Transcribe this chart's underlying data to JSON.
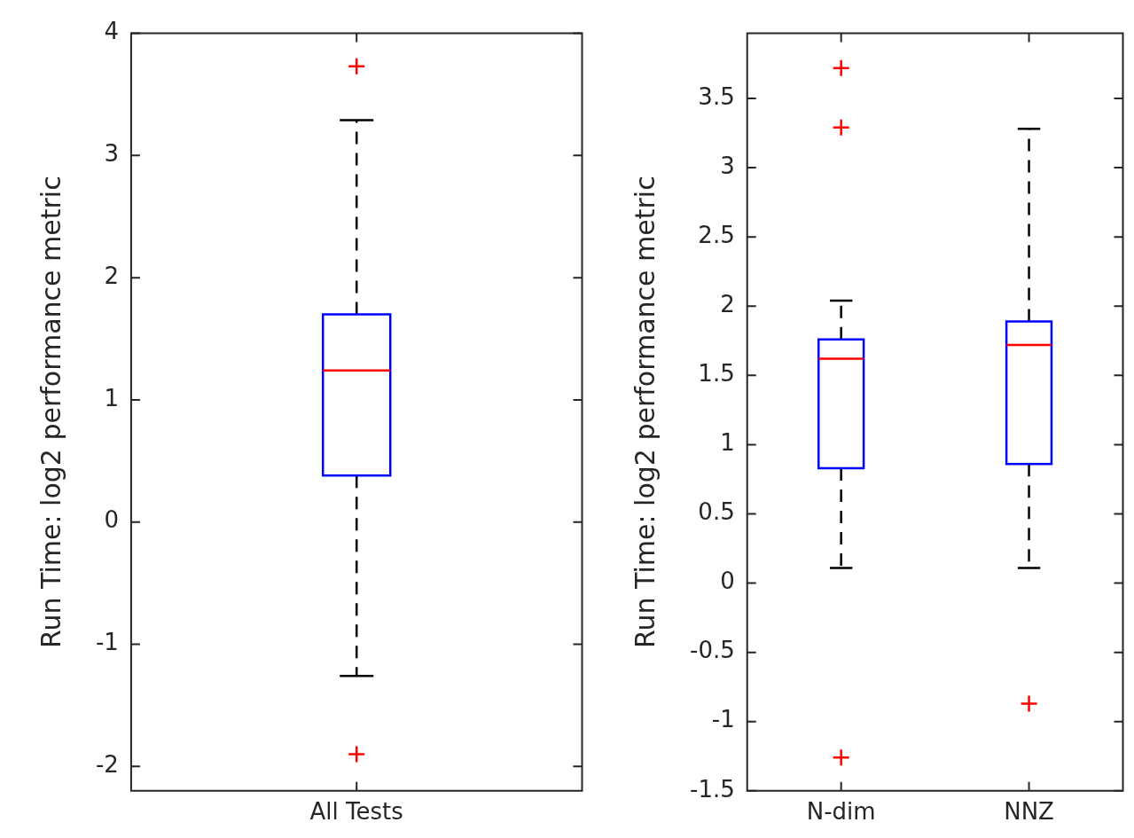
{
  "chart_data": [
    {
      "type": "box",
      "categories": [
        "All Tests"
      ],
      "ylabel": "Run Time: log2 performance metric",
      "ylim": [
        -2.2,
        4
      ],
      "yticks": [
        -2,
        -1,
        0,
        1,
        2,
        3,
        4
      ],
      "grid": false,
      "marker": "cross",
      "series": [
        {
          "color": "#0000ff",
          "boxes": [
            {
              "low": -1.26,
              "q1": 0.38,
              "median": 1.24,
              "q3": 1.7,
              "high": 3.29,
              "outliers": [
                3.73,
                -1.9
              ]
            }
          ]
        }
      ]
    },
    {
      "type": "box",
      "categories": [
        "N-dim",
        "NNZ"
      ],
      "ylabel": "Run Time: log2 performance metric",
      "ylim": [
        -1.5,
        3.97
      ],
      "yticks": [
        -1.5,
        -1,
        -0.5,
        0,
        0.5,
        1,
        1.5,
        2,
        2.5,
        3,
        3.5
      ],
      "grid": false,
      "marker": "cross",
      "series": [
        {
          "color": "#0000ff",
          "boxes": [
            {
              "low": 0.11,
              "q1": 0.83,
              "median": 1.62,
              "q3": 1.76,
              "high": 2.04,
              "outliers": [
                3.72,
                3.29,
                -1.26
              ]
            },
            {
              "low": 0.11,
              "q1": 0.86,
              "median": 1.72,
              "q3": 1.89,
              "high": 3.28,
              "outliers": [
                -0.87
              ]
            }
          ]
        }
      ]
    }
  ]
}
